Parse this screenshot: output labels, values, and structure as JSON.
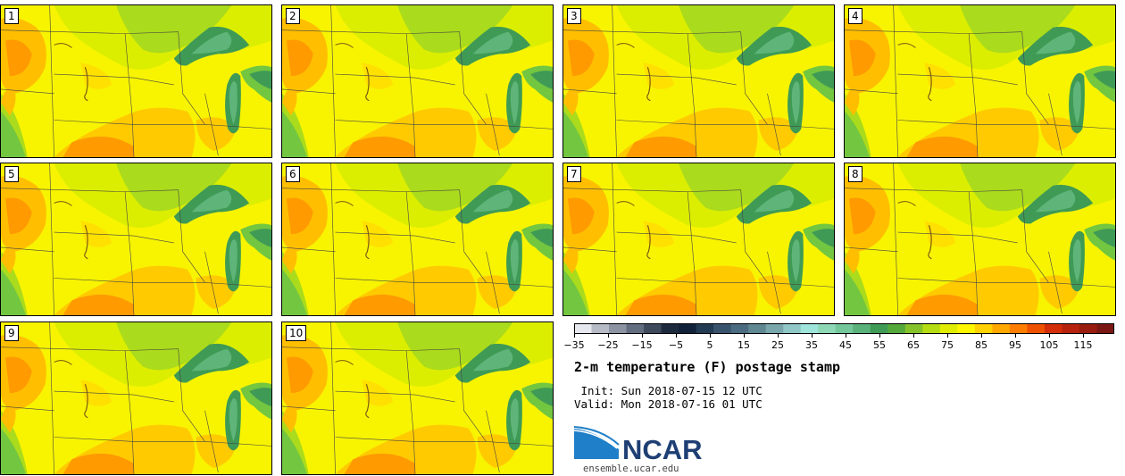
{
  "title": "2-m temperature (F) postage stamp",
  "init": " Init: Sun 2018-07-15 12 UTC",
  "valid": "Valid: Mon 2018-07-16 01 UTC",
  "logo": {
    "text": "NCAR",
    "url": "ensemble.ucar.edu",
    "color": "#1e3f74"
  },
  "members": [
    {
      "label": "1"
    },
    {
      "label": "2"
    },
    {
      "label": "3"
    },
    {
      "label": "4"
    },
    {
      "label": "5"
    },
    {
      "label": "6"
    },
    {
      "label": "7"
    },
    {
      "label": "8"
    },
    {
      "label": "9"
    },
    {
      "label": "10"
    }
  ],
  "colorbar": {
    "ticks": [
      "−35",
      "−25",
      "−15",
      "−5",
      "5",
      "15",
      "25",
      "35",
      "45",
      "55",
      "65",
      "75",
      "85",
      "95",
      "105",
      "115"
    ],
    "colors": [
      "#e6e8ee",
      "#b7bbc6",
      "#8c93a1",
      "#626d7f",
      "#3e495c",
      "#1d2a3d",
      "#10223a",
      "#233a53",
      "#38546d",
      "#4b6b80",
      "#5f8892",
      "#79a7ac",
      "#8fc6c6",
      "#9ee4da",
      "#8ed8b6",
      "#74c79a",
      "#5ab17a",
      "#3f9a55",
      "#55a83b",
      "#86c32a",
      "#b6dc14",
      "#e0ed00",
      "#fff700",
      "#ffd100",
      "#ffa800",
      "#ff7e00",
      "#ee5200",
      "#d32d0a",
      "#b6220d",
      "#981c0f",
      "#7a1712"
    ]
  }
}
